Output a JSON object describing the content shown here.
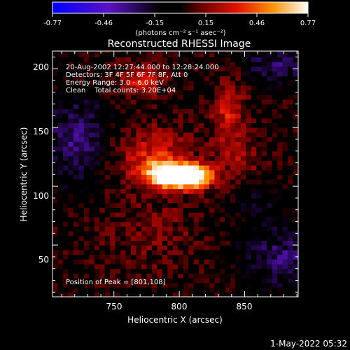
{
  "chart_data": {
    "type": "heatmap",
    "title": "Reconstructed RHESSI Image",
    "xlabel": "Heliocentric X (arcsec)",
    "ylabel": "Heliocentric Y (arcsec)",
    "xlim": [
      703,
      891
    ],
    "ylim": [
      6,
      215
    ],
    "xticks": [
      750,
      800,
      850
    ],
    "yticks": [
      50,
      100,
      150,
      200
    ],
    "colorbar": {
      "min": -0.77,
      "max": 0.77,
      "ticks": [
        "-0.77",
        "-0.46",
        "-0.15",
        "0.15",
        "0.46",
        "0.77"
      ],
      "unit_label": "(photons cm⁻² s⁻¹ asec⁻²)"
    },
    "info": {
      "time_range": "20-Aug-2002 12:27:44.000 to 12:28:24.000",
      "detectors": "Detectors: 3F 4F 5F 6F 7F 8F, Att 0",
      "energy": "Energy Range: 3.0 - 6.0 keV",
      "method": "Clean    Total counts: 3.20E+04"
    },
    "peak_label": "Position of Peak = [801,108]",
    "peak": [
      801,
      108
    ],
    "timestamp": "1-May-2022 05:32",
    "sources": [
      {
        "x": 801,
        "y": 108,
        "sx": 13,
        "sy": 7,
        "amp": 0.8
      },
      {
        "x": 788,
        "y": 113,
        "sx": 11,
        "sy": 8,
        "amp": 0.42
      },
      {
        "x": 815,
        "y": 110,
        "sx": 10,
        "sy": 7,
        "amp": 0.4
      },
      {
        "x": 780,
        "y": 125,
        "sx": 22,
        "sy": 18,
        "amp": 0.3
      },
      {
        "x": 770,
        "y": 190,
        "sx": 12,
        "sy": 10,
        "amp": 0.3
      },
      {
        "x": 838,
        "y": 160,
        "sx": 9,
        "sy": 22,
        "amp": 0.3
      },
      {
        "x": 850,
        "y": 120,
        "sx": 12,
        "sy": 12,
        "amp": 0.18
      },
      {
        "x": 780,
        "y": 60,
        "sx": 30,
        "sy": 22,
        "amp": 0.12
      }
    ],
    "negative_sources": [
      {
        "x": 720,
        "y": 140,
        "sx": 18,
        "sy": 25,
        "amp": -0.3
      },
      {
        "x": 880,
        "y": 40,
        "sx": 22,
        "sy": 18,
        "amp": -0.28
      },
      {
        "x": 875,
        "y": 205,
        "sx": 18,
        "sy": 12,
        "amp": -0.25
      },
      {
        "x": 860,
        "y": 90,
        "sx": 14,
        "sy": 14,
        "amp": -0.12
      }
    ]
  }
}
